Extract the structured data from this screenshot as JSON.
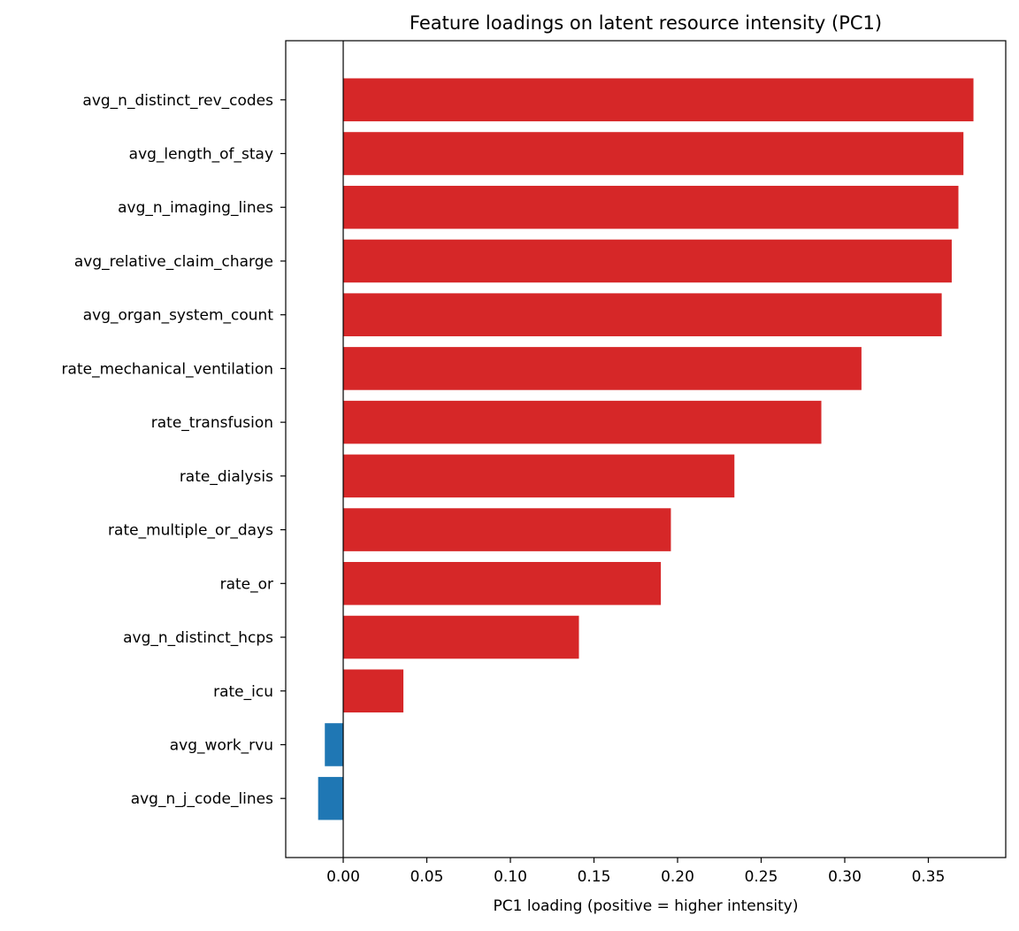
{
  "chart_data": {
    "type": "bar",
    "orientation": "horizontal",
    "title": "Feature loadings on latent resource intensity (PC1)",
    "xlabel": "PC1 loading (positive = higher intensity)",
    "ylabel": "",
    "xlim": [
      -0.0344,
      0.3963
    ],
    "xticks": [
      "0.00",
      "0.05",
      "0.10",
      "0.15",
      "0.20",
      "0.25",
      "0.30",
      "0.35"
    ],
    "grid": false,
    "zero_line": true,
    "colors": {
      "positive": "#d62728",
      "negative": "#1f77b4"
    },
    "categories": [
      "avg_n_distinct_rev_codes",
      "avg_length_of_stay",
      "avg_n_imaging_lines",
      "avg_relative_claim_charge",
      "avg_organ_system_count",
      "rate_mechanical_ventilation",
      "rate_transfusion",
      "rate_dialysis",
      "rate_multiple_or_days",
      "rate_or",
      "avg_n_distinct_hcps",
      "rate_icu",
      "avg_work_rvu",
      "avg_n_j_code_lines"
    ],
    "values": [
      0.377,
      0.371,
      0.368,
      0.364,
      0.358,
      0.31,
      0.286,
      0.234,
      0.196,
      0.19,
      0.141,
      0.036,
      -0.011,
      -0.015
    ]
  }
}
